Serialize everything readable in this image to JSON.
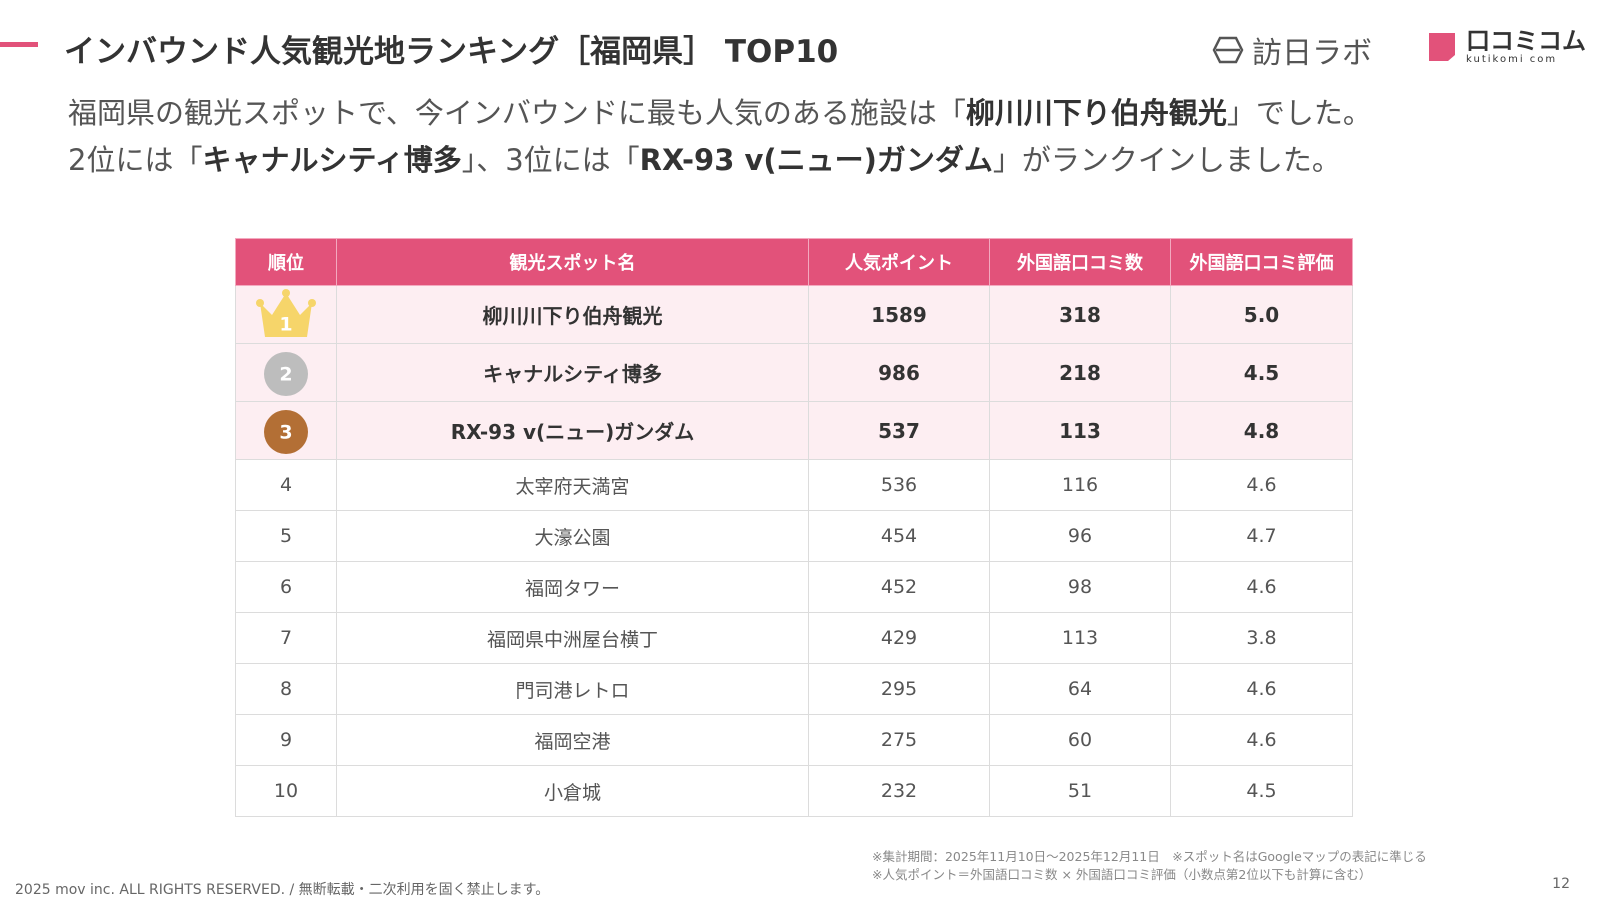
{
  "header": {
    "title": "インバウンド人気観光地ランキング［福岡県］ TOP10",
    "logo_1": "訪日ラボ",
    "logo_2": "口コミコム",
    "logo_2_sub": "kutikomi com"
  },
  "lead": [
    [
      {
        "text": "福岡県の観光スポットで、今インバウンドに最も人気のある施設は「",
        "bold": false
      },
      {
        "text": "柳川川下り伯舟観光",
        "bold": true
      },
      {
        "text": "」でした。",
        "bold": false
      }
    ],
    [
      {
        "text": "2位には「",
        "bold": false
      },
      {
        "text": "キャナルシティ博多",
        "bold": true
      },
      {
        "text": "」、3位には「",
        "bold": false
      },
      {
        "text": "RX-93 v(ニュー)ガンダム",
        "bold": true
      },
      {
        "text": "」がランクインしました。",
        "bold": false
      }
    ]
  ],
  "table": {
    "columns": [
      "順位",
      "観光スポット名",
      "人気ポイント",
      "外国語口コミ数",
      "外国語口コミ評価"
    ],
    "rows": [
      [
        "1",
        "柳川川下り伯舟観光",
        "1589",
        "318",
        "5.0"
      ],
      [
        "2",
        "キャナルシティ博多",
        "986",
        "218",
        "4.5"
      ],
      [
        "3",
        "RX-93 v(ニュー)ガンダム",
        "537",
        "113",
        "4.8"
      ],
      [
        "4",
        "太宰府天満宮",
        "536",
        "116",
        "4.6"
      ],
      [
        "5",
        "大濠公園",
        "454",
        "96",
        "4.7"
      ],
      [
        "6",
        "福岡タワー",
        "452",
        "98",
        "4.6"
      ],
      [
        "7",
        "福岡県中洲屋台横丁",
        "429",
        "113",
        "3.8"
      ],
      [
        "8",
        "門司港レトロ",
        "295",
        "64",
        "4.6"
      ],
      [
        "9",
        "福岡空港",
        "275",
        "60",
        "4.6"
      ],
      [
        "10",
        "小倉城",
        "232",
        "51",
        "4.5"
      ]
    ]
  },
  "notes": [
    "※集計期間：2025年11月10日〜2025年12月11日　※スポット名はGoogleマップの表記に準じる",
    "※人気ポイント＝外国語口コミ数 × 外国語口コミ評価（小数点第2位以下も計算に含む）"
  ],
  "footer": {
    "copyright": "2025 mov inc. ALL RIGHTS RESERVED. / 無断転載・二次利用を固く禁止します。",
    "page": "12"
  }
}
